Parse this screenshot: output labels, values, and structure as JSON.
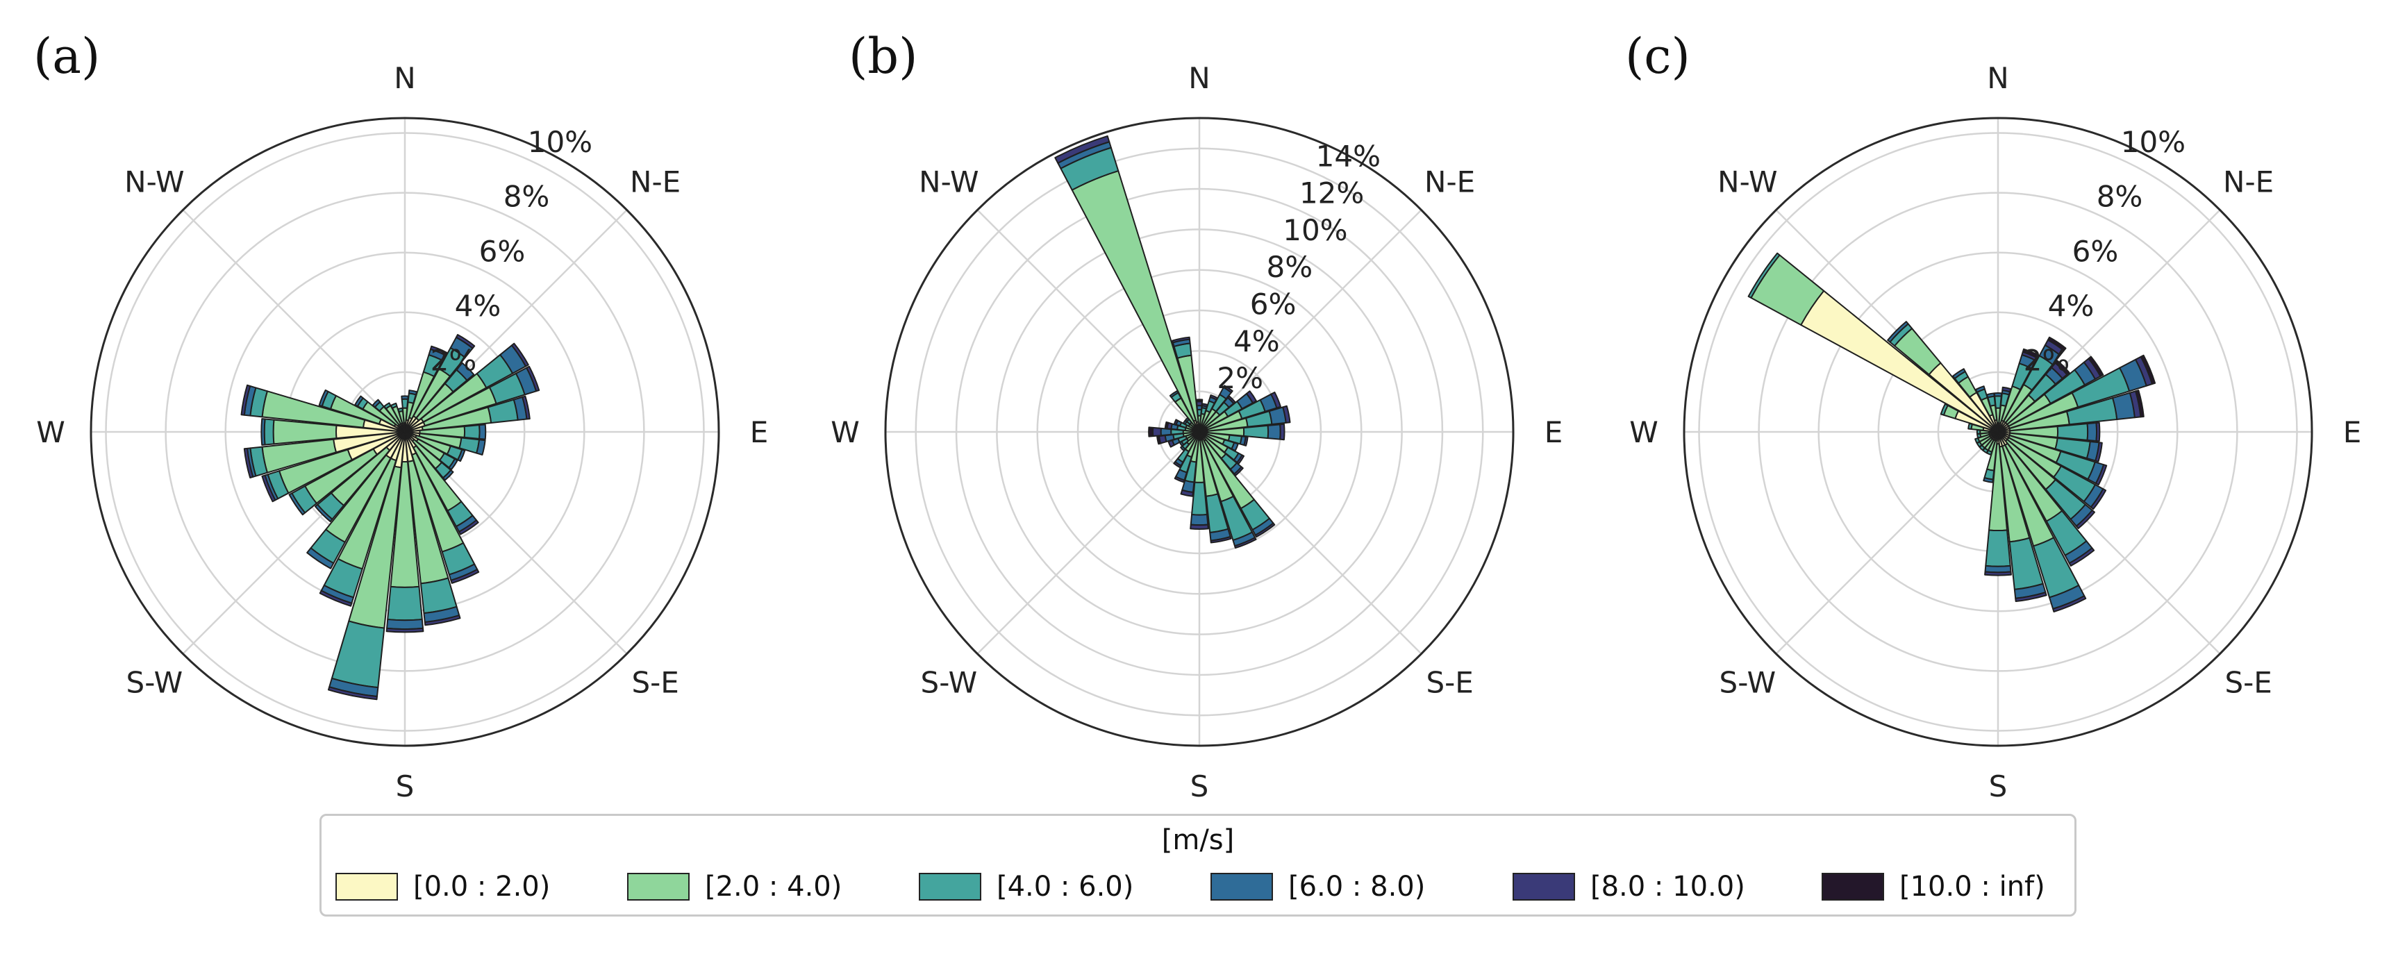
{
  "speed_bins": [
    {
      "label": "[0.0 : 2.0)",
      "color": "#fcf8c4"
    },
    {
      "label": "[2.0 : 4.0)",
      "color": "#8fd69b"
    },
    {
      "label": "[4.0 : 6.0)",
      "color": "#44a59e"
    },
    {
      "label": "[6.0 : 8.0)",
      "color": "#2f6c98"
    },
    {
      "label": "[8.0 : 10.0)",
      "color": "#3a3a78"
    },
    {
      "label": "[10.0 : inf)",
      "color": "#23172a"
    }
  ],
  "legend": {
    "title": "[m/s]"
  },
  "chart_data": [
    {
      "type": "windrose",
      "panel_label": "(a)",
      "rmax": 10.5,
      "ring_values": [
        2,
        4,
        6,
        8,
        10
      ],
      "ring_labels": [
        "2%",
        "4%",
        "6%",
        "8%",
        "10%"
      ],
      "directions": [
        "N",
        "N-E",
        "E",
        "S-E",
        "S",
        "S-W",
        "W",
        "N-W"
      ],
      "sectors": [
        {
          "angle": 0,
          "stack": [
            0.3,
            0.5,
            0.3,
            0.1,
            0,
            0
          ]
        },
        {
          "angle": 11.25,
          "stack": [
            0.4,
            0.6,
            0.3,
            0.1,
            0,
            0
          ]
        },
        {
          "angle": 22.5,
          "stack": [
            0.5,
            1.6,
            0.6,
            0.2,
            0.1,
            0
          ]
        },
        {
          "angle": 33.75,
          "stack": [
            0.6,
            1.8,
            0.8,
            0.4,
            0.1,
            0
          ]
        },
        {
          "angle": 45,
          "stack": [
            0.6,
            1.5,
            0.6,
            0.3,
            0,
            0
          ]
        },
        {
          "angle": 56.25,
          "stack": [
            0.7,
            2.4,
            1.0,
            0.5,
            0.1,
            0
          ]
        },
        {
          "angle": 67.5,
          "stack": [
            0.7,
            2.5,
            1.0,
            0.4,
            0.1,
            0
          ]
        },
        {
          "angle": 78.75,
          "stack": [
            0.6,
            2.3,
            0.9,
            0.3,
            0.1,
            0
          ]
        },
        {
          "angle": 90,
          "stack": [
            0.5,
            1.5,
            0.5,
            0.2,
            0,
            0
          ]
        },
        {
          "angle": 101.25,
          "stack": [
            0.5,
            1.4,
            0.6,
            0.2,
            0,
            0
          ]
        },
        {
          "angle": 112.5,
          "stack": [
            0.4,
            1.2,
            0.4,
            0.1,
            0,
            0
          ]
        },
        {
          "angle": 123.75,
          "stack": [
            0.5,
            1.0,
            0.4,
            0.1,
            0,
            0
          ]
        },
        {
          "angle": 135,
          "stack": [
            0.4,
            1.2,
            0.4,
            0.1,
            0,
            0
          ]
        },
        {
          "angle": 146.25,
          "stack": [
            0.6,
            2.4,
            0.6,
            0.2,
            0.1,
            0
          ]
        },
        {
          "angle": 157.5,
          "stack": [
            0.8,
            3.4,
            0.8,
            0.2,
            0.1,
            0
          ]
        },
        {
          "angle": 168.75,
          "stack": [
            1.0,
            4.1,
            1.0,
            0.3,
            0.1,
            0
          ]
        },
        {
          "angle": 180,
          "stack": [
            1.0,
            4.2,
            1.1,
            0.3,
            0.1,
            0
          ]
        },
        {
          "angle": 191.25,
          "stack": [
            1.2,
            5.4,
            2.0,
            0.3,
            0.1,
            0
          ]
        },
        {
          "angle": 202.5,
          "stack": [
            1.0,
            3.8,
            1.0,
            0.2,
            0.1,
            0
          ]
        },
        {
          "angle": 213.75,
          "stack": [
            1.0,
            3.2,
            0.8,
            0.2,
            0,
            0
          ]
        },
        {
          "angle": 225,
          "stack": [
            0.8,
            2.4,
            0.6,
            0.1,
            0,
            0
          ]
        },
        {
          "angle": 236.25,
          "stack": [
            1.2,
            2.6,
            0.5,
            0.1,
            0,
            0
          ]
        },
        {
          "angle": 247.5,
          "stack": [
            2.0,
            2.4,
            0.4,
            0.1,
            0.1,
            0
          ]
        },
        {
          "angle": 258.75,
          "stack": [
            2.4,
            2.4,
            0.4,
            0.1,
            0.1,
            0
          ]
        },
        {
          "angle": 270,
          "stack": [
            2.3,
            2.1,
            0.3,
            0.1,
            0,
            0
          ]
        },
        {
          "angle": 281.25,
          "stack": [
            1.4,
            3.4,
            0.4,
            0.2,
            0.1,
            0
          ]
        },
        {
          "angle": 292.5,
          "stack": [
            0.9,
            1.7,
            0.3,
            0.1,
            0,
            0
          ]
        },
        {
          "angle": 303.75,
          "stack": [
            0.4,
            1.2,
            0.2,
            0.1,
            0,
            0
          ]
        },
        {
          "angle": 315,
          "stack": [
            0.3,
            0.8,
            0.2,
            0.1,
            0,
            0
          ]
        },
        {
          "angle": 326.25,
          "stack": [
            0.3,
            0.7,
            0.1,
            0,
            0,
            0
          ]
        },
        {
          "angle": 337.5,
          "stack": [
            0.3,
            0.6,
            0.1,
            0,
            0,
            0
          ]
        },
        {
          "angle": 348.75,
          "stack": [
            0.3,
            0.4,
            0.1,
            0,
            0,
            0
          ]
        }
      ]
    },
    {
      "type": "windrose",
      "panel_label": "(b)",
      "rmax": 15.5,
      "ring_values": [
        2,
        4,
        6,
        8,
        10,
        12,
        14
      ],
      "ring_labels": [
        "2%",
        "4%",
        "6%",
        "8%",
        "10%",
        "12%",
        "14%"
      ],
      "directions": [
        "N",
        "N-E",
        "E",
        "S-E",
        "S",
        "S-W",
        "W",
        "N-W"
      ],
      "sectors": [
        {
          "angle": 0,
          "stack": [
            0.3,
            0.5,
            0.3,
            0.2,
            0.2,
            0.1
          ]
        },
        {
          "angle": 11.25,
          "stack": [
            0.3,
            0.6,
            0.3,
            0.1,
            0.1,
            0
          ]
        },
        {
          "angle": 22.5,
          "stack": [
            0.3,
            0.8,
            0.5,
            0.2,
            0.1,
            0
          ]
        },
        {
          "angle": 33.75,
          "stack": [
            0.3,
            1.0,
            0.8,
            0.4,
            0.1,
            0
          ]
        },
        {
          "angle": 45,
          "stack": [
            0.3,
            1.0,
            0.6,
            0.3,
            0.1,
            0
          ]
        },
        {
          "angle": 56.25,
          "stack": [
            0.4,
            1.2,
            0.8,
            0.6,
            0.2,
            0
          ]
        },
        {
          "angle": 67.5,
          "stack": [
            0.4,
            1.8,
            1.2,
            0.6,
            0.2,
            0
          ]
        },
        {
          "angle": 78.75,
          "stack": [
            0.4,
            2.0,
            1.2,
            0.7,
            0.2,
            0
          ]
        },
        {
          "angle": 90,
          "stack": [
            0.4,
            1.8,
            1.2,
            0.6,
            0.2,
            0
          ]
        },
        {
          "angle": 101.25,
          "stack": [
            0.3,
            1.2,
            0.6,
            0.2,
            0.1,
            0
          ]
        },
        {
          "angle": 112.5,
          "stack": [
            0.3,
            1.0,
            0.5,
            0.2,
            0,
            0
          ]
        },
        {
          "angle": 123.75,
          "stack": [
            0.3,
            1.3,
            0.6,
            0.2,
            0.1,
            0
          ]
        },
        {
          "angle": 135,
          "stack": [
            0.3,
            1.4,
            0.7,
            0.3,
            0.1,
            0
          ]
        },
        {
          "angle": 146.25,
          "stack": [
            0.5,
            3.8,
            1.2,
            0.3,
            0.1,
            0
          ]
        },
        {
          "angle": 157.5,
          "stack": [
            0.4,
            3.2,
            2.0,
            0.3,
            0.1,
            0
          ]
        },
        {
          "angle": 168.75,
          "stack": [
            0.4,
            2.8,
            1.8,
            0.4,
            0.1,
            0
          ]
        },
        {
          "angle": 180,
          "stack": [
            0.4,
            2.1,
            1.6,
            0.5,
            0.2,
            0
          ]
        },
        {
          "angle": 191.25,
          "stack": [
            0.3,
            1.2,
            1.0,
            0.5,
            0.2,
            0
          ]
        },
        {
          "angle": 202.5,
          "stack": [
            0.3,
            1.0,
            0.8,
            0.4,
            0.1,
            0
          ]
        },
        {
          "angle": 213.75,
          "stack": [
            0.3,
            0.8,
            0.6,
            0.2,
            0.1,
            0
          ]
        },
        {
          "angle": 225,
          "stack": [
            0.3,
            0.5,
            0.3,
            0.1,
            0,
            0
          ]
        },
        {
          "angle": 236.25,
          "stack": [
            0.3,
            0.4,
            0.3,
            0.1,
            0,
            0
          ]
        },
        {
          "angle": 247.5,
          "stack": [
            0.3,
            0.4,
            0.4,
            0.3,
            0.2,
            0
          ]
        },
        {
          "angle": 258.75,
          "stack": [
            0.3,
            0.5,
            0.5,
            0.4,
            0.3,
            0.1
          ]
        },
        {
          "angle": 270,
          "stack": [
            0.3,
            0.5,
            0.6,
            0.5,
            0.4,
            0.2
          ]
        },
        {
          "angle": 281.25,
          "stack": [
            0.3,
            0.4,
            0.4,
            0.3,
            0.2,
            0.1
          ]
        },
        {
          "angle": 292.5,
          "stack": [
            0.3,
            0.4,
            0.3,
            0.2,
            0.1,
            0
          ]
        },
        {
          "angle": 303.75,
          "stack": [
            0.3,
            0.3,
            0.2,
            0.1,
            0,
            0
          ]
        },
        {
          "angle": 315,
          "stack": [
            0.3,
            0.3,
            0.2,
            0.1,
            0,
            0
          ]
        },
        {
          "angle": 326.25,
          "stack": [
            0.4,
            1.5,
            0.3,
            0.1,
            0,
            0
          ]
        },
        {
          "angle": 337.5,
          "stack": [
            0.6,
            12.9,
            1.2,
            0.3,
            0.3,
            0
          ]
        },
        {
          "angle": 348.75,
          "stack": [
            0.5,
            3.3,
            0.6,
            0.2,
            0.1,
            0
          ]
        }
      ]
    },
    {
      "type": "windrose",
      "panel_label": "(c)",
      "rmax": 10.5,
      "ring_values": [
        2,
        4,
        6,
        8,
        10
      ],
      "ring_labels": [
        "2%",
        "4%",
        "6%",
        "8%",
        "10%"
      ],
      "directions": [
        "N",
        "N-E",
        "E",
        "S-E",
        "S",
        "S-W",
        "W",
        "N-W"
      ],
      "sectors": [
        {
          "angle": 0,
          "stack": [
            0.3,
            0.5,
            0.4,
            0.1,
            0,
            0
          ]
        },
        {
          "angle": 11.25,
          "stack": [
            0.3,
            0.6,
            0.4,
            0.1,
            0.1,
            0
          ]
        },
        {
          "angle": 22.5,
          "stack": [
            0.4,
            1.2,
            0.8,
            0.3,
            0.1,
            0.1
          ]
        },
        {
          "angle": 33.75,
          "stack": [
            0.4,
            1.4,
            1.1,
            0.4,
            0.2,
            0.1
          ]
        },
        {
          "angle": 45,
          "stack": [
            0.4,
            1.2,
            0.9,
            0.3,
            0.2,
            0.1
          ]
        },
        {
          "angle": 56.25,
          "stack": [
            0.4,
            1.6,
            1.3,
            0.4,
            0.2,
            0.1
          ]
        },
        {
          "angle": 67.5,
          "stack": [
            0.4,
            2.4,
            1.8,
            0.6,
            0.2,
            0.1
          ]
        },
        {
          "angle": 78.75,
          "stack": [
            0.4,
            2.0,
            1.6,
            0.6,
            0.2,
            0.1
          ]
        },
        {
          "angle": 90,
          "stack": [
            0.4,
            1.6,
            1.0,
            0.3,
            0.1,
            0
          ]
        },
        {
          "angle": 101.25,
          "stack": [
            0.4,
            1.6,
            1.1,
            0.3,
            0.1,
            0
          ]
        },
        {
          "angle": 112.5,
          "stack": [
            0.4,
            1.8,
            1.2,
            0.3,
            0.1,
            0
          ]
        },
        {
          "angle": 123.75,
          "stack": [
            0.4,
            2.0,
            1.3,
            0.3,
            0.1,
            0
          ]
        },
        {
          "angle": 135,
          "stack": [
            0.4,
            2.1,
            1.3,
            0.3,
            0.1,
            0
          ]
        },
        {
          "angle": 146.25,
          "stack": [
            0.5,
            2.9,
            1.3,
            0.3,
            0.1,
            0
          ]
        },
        {
          "angle": 157.5,
          "stack": [
            0.5,
            3.5,
            1.8,
            0.4,
            0.1,
            0
          ]
        },
        {
          "angle": 168.75,
          "stack": [
            0.5,
            3.2,
            1.6,
            0.3,
            0.1,
            0
          ]
        },
        {
          "angle": 180,
          "stack": [
            0.4,
            2.9,
            1.2,
            0.2,
            0.1,
            0
          ]
        },
        {
          "angle": 191.25,
          "stack": [
            0.3,
            1.0,
            0.3,
            0.1,
            0,
            0
          ]
        },
        {
          "angle": 202.5,
          "stack": [
            0.3,
            0.4,
            0.1,
            0,
            0,
            0
          ]
        },
        {
          "angle": 213.75,
          "stack": [
            0.3,
            0.4,
            0.1,
            0,
            0,
            0
          ]
        },
        {
          "angle": 225,
          "stack": [
            0.3,
            0.4,
            0.1,
            0,
            0,
            0
          ]
        },
        {
          "angle": 236.25,
          "stack": [
            0.3,
            0.4,
            0.1,
            0,
            0,
            0
          ]
        },
        {
          "angle": 247.5,
          "stack": [
            0.3,
            0.4,
            0.1,
            0,
            0,
            0
          ]
        },
        {
          "angle": 258.75,
          "stack": [
            0.3,
            0.3,
            0.1,
            0,
            0,
            0
          ]
        },
        {
          "angle": 270,
          "stack": [
            0.3,
            0.3,
            0.1,
            0,
            0,
            0
          ]
        },
        {
          "angle": 281.25,
          "stack": [
            0.5,
            0.4,
            0.1,
            0,
            0,
            0
          ]
        },
        {
          "angle": 292.5,
          "stack": [
            1.5,
            0.4,
            0.1,
            0,
            0,
            0
          ]
        },
        {
          "angle": 303.75,
          "stack": [
            7.5,
            1.9,
            0.1,
            0,
            0,
            0
          ]
        },
        {
          "angle": 315,
          "stack": [
            3.0,
            1.5,
            0.2,
            0.1,
            0,
            0
          ]
        },
        {
          "angle": 326.25,
          "stack": [
            1.5,
            0.6,
            0.2,
            0.1,
            0,
            0
          ]
        },
        {
          "angle": 337.5,
          "stack": [
            0.6,
            0.6,
            0.3,
            0.1,
            0,
            0
          ]
        },
        {
          "angle": 348.75,
          "stack": [
            0.4,
            0.5,
            0.3,
            0.1,
            0,
            0
          ]
        }
      ]
    }
  ]
}
